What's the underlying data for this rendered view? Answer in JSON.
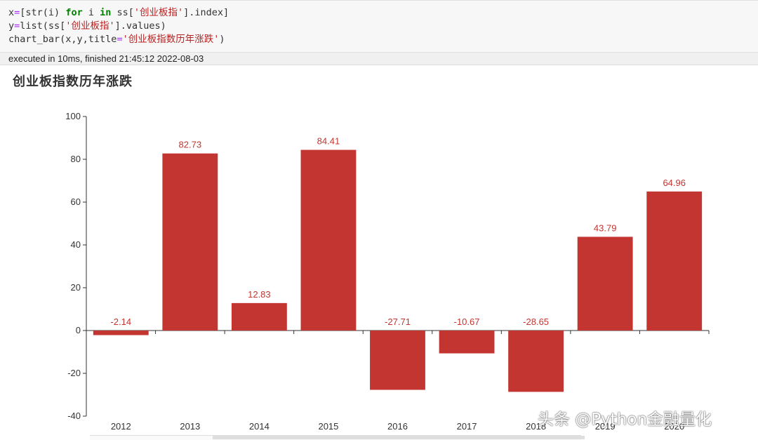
{
  "code_cell": {
    "line1": {
      "p1": "x",
      "p2": "=",
      "p3": "[str(i) ",
      "p4": "for",
      "p5": " i ",
      "p6": "in",
      "p7": " ss[",
      "p8": "'创业板指'",
      "p9": "].index]"
    },
    "line2": {
      "p1": "y",
      "p2": "=",
      "p3": "list",
      "p4": "(ss[",
      "p5": "'创业板指'",
      "p6": "].values)"
    },
    "line3": {
      "p1": "chart_bar(x,y,title",
      "p2": "=",
      "p3": "'创业板指数历年涨跌'",
      "p4": ")"
    }
  },
  "status": {
    "text": "executed in 10ms, finished 21:45:12 2022-08-03"
  },
  "watermark": {
    "text": "头条 @Python金融量化"
  },
  "colors": {
    "bar": "#c23531",
    "axis": "#333333",
    "label": "#c23531"
  },
  "chart_data": {
    "type": "bar",
    "title": "创业板指数历年涨跌",
    "categories": [
      "2012",
      "2013",
      "2014",
      "2015",
      "2016",
      "2017",
      "2018",
      "2019",
      "2020"
    ],
    "values": [
      -2.14,
      82.73,
      12.83,
      84.41,
      -27.71,
      -10.67,
      -28.65,
      43.79,
      64.96
    ],
    "data_labels": [
      "-2.14",
      "82.73",
      "12.83",
      "84.41",
      "-27.71",
      "-10.67",
      "-28.65",
      "43.79",
      "64.96"
    ],
    "ylim": [
      -40,
      100
    ],
    "yticks": [
      100,
      80,
      60,
      40,
      20,
      0,
      -20,
      -40
    ],
    "ytick_labels": [
      "100",
      "80",
      "60",
      "40",
      "20",
      "0",
      "-20",
      "-40"
    ],
    "grid": false,
    "legend": "none"
  }
}
